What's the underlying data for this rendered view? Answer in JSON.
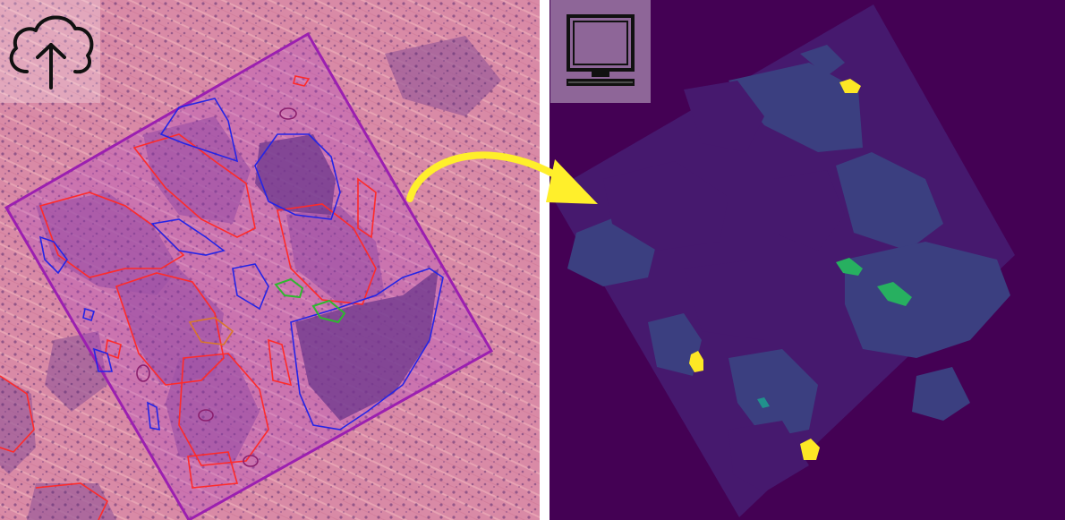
{
  "left_panel": {
    "content": "histology-tissue-image",
    "icon": "cloud-upload-icon",
    "colors": {
      "tissue_base": "#d98aa6",
      "stroma": "#e59aa8",
      "tumor_nest": "#9d5e9a",
      "dense_cells": "#5b3a78",
      "roi_box": "#9b1fb0",
      "contour_red": "#ff2a2a",
      "contour_blue": "#2424e6",
      "contour_green": "#2fb82f",
      "contour_orange": "#d9772a",
      "contour_magenta": "#8a1f6e"
    }
  },
  "right_panel": {
    "content": "segmentation-mask",
    "icon": "monitor-icon",
    "colors": {
      "background": "#440154",
      "class_purple": "#46196e",
      "class_blue": "#3b3f80",
      "class_teal": "#21918c",
      "class_green": "#27b060",
      "class_yellow": "#fde725"
    }
  },
  "arrow": {
    "icon": "curved-arrow-icon",
    "color": "#ffef2b"
  }
}
